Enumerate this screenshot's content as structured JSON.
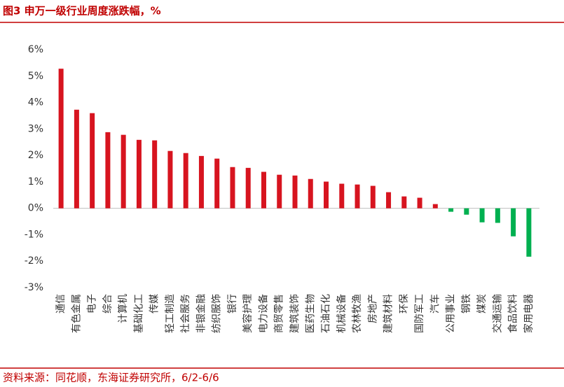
{
  "chart_data": {
    "type": "bar",
    "title": "图3 申万一级行业周度涨跌幅，%",
    "source": "资料来源：同花顺，东海证券研究所，6/2-6/6",
    "categories": [
      "通信",
      "有色金属",
      "电子",
      "综合",
      "计算机",
      "基础化工",
      "传媒",
      "轻工制造",
      "社会服务",
      "非银金融",
      "纺织服饰",
      "银行",
      "美容护理",
      "电力设备",
      "商贸零售",
      "建筑装饰",
      "医药生物",
      "石油石化",
      "机械设备",
      "农林牧渔",
      "房地产",
      "建筑材料",
      "环保",
      "国防军工",
      "汽车",
      "公用事业",
      "钢铁",
      "煤炭",
      "交通运输",
      "食品饮料",
      "家用电器"
    ],
    "values": [
      5.28,
      3.73,
      3.6,
      2.88,
      2.78,
      2.59,
      2.57,
      2.17,
      2.09,
      1.98,
      1.88,
      1.56,
      1.53,
      1.38,
      1.27,
      1.24,
      1.11,
      1.01,
      0.93,
      0.9,
      0.85,
      0.61,
      0.45,
      0.4,
      0.16,
      -0.13,
      -0.24,
      -0.53,
      -0.55,
      -1.06,
      -1.83
    ],
    "color": "#d7141f",
    "negative_color": "#00b050",
    "ylim": [
      -3,
      6
    ],
    "yticks": [
      {
        "value": -3,
        "label": "-3%"
      },
      {
        "value": -2,
        "label": "-2%"
      },
      {
        "value": -1,
        "label": "-1%"
      },
      {
        "value": 0,
        "label": "0%"
      },
      {
        "value": 1,
        "label": "1%"
      },
      {
        "value": 2,
        "label": "2%"
      },
      {
        "value": 3,
        "label": "3%"
      },
      {
        "value": 4,
        "label": "4%"
      },
      {
        "value": 5,
        "label": "5%"
      },
      {
        "value": 6,
        "label": "6%"
      }
    ],
    "grid": false
  }
}
